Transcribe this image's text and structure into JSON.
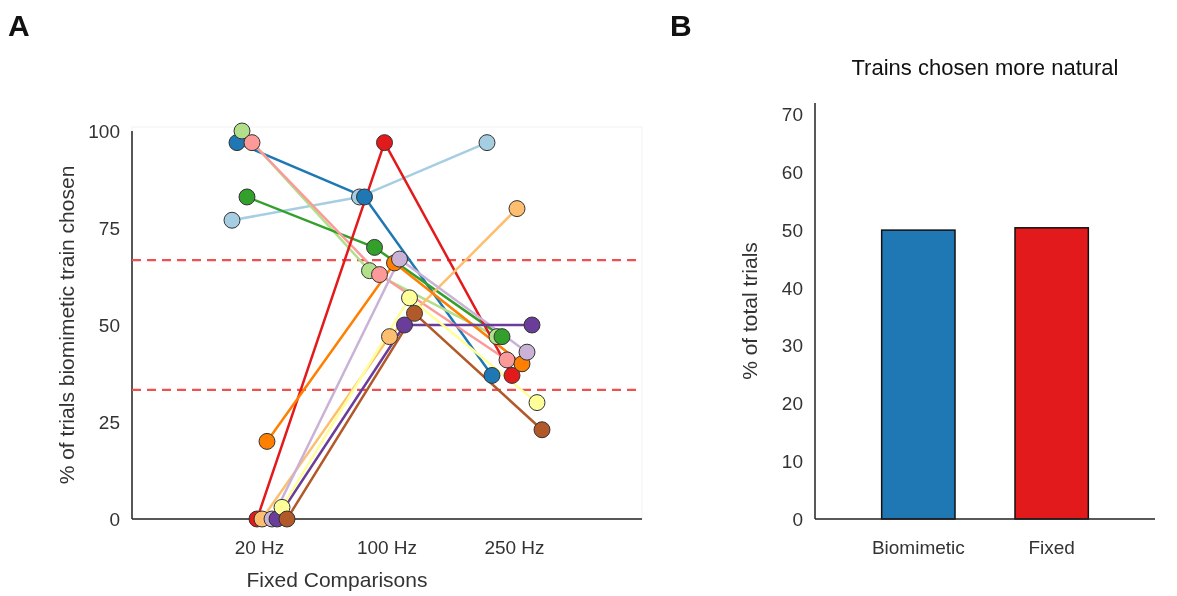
{
  "chart_data": [
    {
      "type": "line",
      "xlabel": "Fixed Comparisons",
      "ylabel": "% of trials biomimetic train chosen",
      "annotations": [
        "A"
      ],
      "categories": [
        "20 Hz",
        "100 Hz",
        "250 Hz"
      ],
      "ylim": [
        0,
        100
      ],
      "yticks": [
        0,
        25,
        50,
        75,
        100
      ],
      "grid": false,
      "marker": "circle",
      "line_style": "solid",
      "ref_lines": [
        {
          "axis": "y",
          "value": 33.3,
          "color": "#f0504f",
          "line_style": "dashed"
        },
        {
          "axis": "y",
          "value": 66.7,
          "color": "#f0504f",
          "line_style": "dashed"
        }
      ],
      "series": [
        {
          "color": "#a6cee3",
          "values": [
            77,
            83,
            97
          ]
        },
        {
          "color": "#1f78b4",
          "values": [
            97,
            83,
            37
          ]
        },
        {
          "color": "#b2df8a",
          "values": [
            100,
            64,
            47
          ]
        },
        {
          "color": "#33a02c",
          "values": [
            83,
            70,
            47
          ]
        },
        {
          "color": "#fb9a99",
          "values": [
            97,
            63,
            41
          ]
        },
        {
          "color": "#e31a1c",
          "values": [
            0,
            97,
            37
          ]
        },
        {
          "color": "#fdbf6f",
          "values": [
            0,
            47,
            80
          ]
        },
        {
          "color": "#ff7f00",
          "values": [
            20,
            66,
            40
          ]
        },
        {
          "color": "#cab2d6",
          "values": [
            0,
            67,
            43
          ]
        },
        {
          "color": "#6a3d9a",
          "values": [
            0,
            50,
            50
          ]
        },
        {
          "color": "#ffff99",
          "values": [
            3,
            57,
            30
          ]
        },
        {
          "color": "#b15928",
          "values": [
            0,
            53,
            23
          ]
        }
      ]
    },
    {
      "type": "bar",
      "title": "Trains chosen more natural",
      "ylabel": "% of total trials",
      "annotations": [
        "B"
      ],
      "categories": [
        "Biomimetic",
        "Fixed"
      ],
      "values": [
        50,
        50.4
      ],
      "colors": [
        "#1f77b4",
        "#e31a1c"
      ],
      "ylim": [
        0,
        72
      ],
      "yticks": [
        0,
        10,
        20,
        30,
        40,
        50,
        60,
        70
      ],
      "grid": false
    }
  ]
}
